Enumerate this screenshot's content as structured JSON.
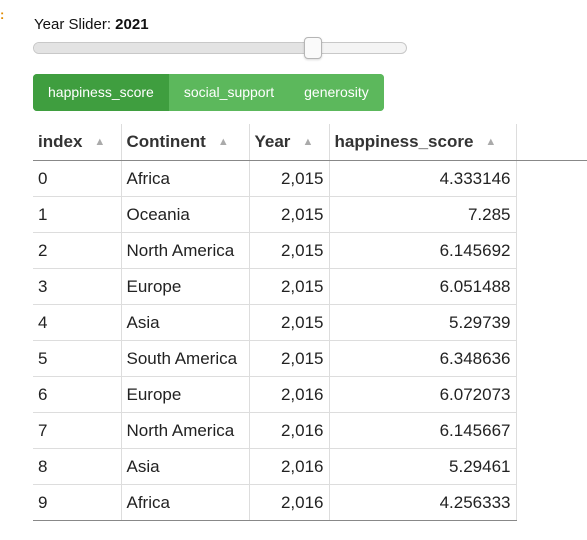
{
  "slider": {
    "label": "Year Slider:",
    "value": "2021",
    "min": 2015,
    "max": 2023,
    "fraction": 0.75
  },
  "tabs": [
    {
      "label": "happiness_score",
      "active": true
    },
    {
      "label": "social_support",
      "active": false
    },
    {
      "label": "generosity",
      "active": false
    }
  ],
  "table": {
    "columns": [
      "index",
      "Continent",
      "Year",
      "happiness_score"
    ],
    "sort_icon": "sort-up-icon",
    "rows": [
      {
        "index": "0",
        "continent": "Africa",
        "year": "2,015",
        "score": "4.333146"
      },
      {
        "index": "1",
        "continent": "Oceania",
        "year": "2,015",
        "score": "7.285"
      },
      {
        "index": "2",
        "continent": "North America",
        "year": "2,015",
        "score": "6.145692"
      },
      {
        "index": "3",
        "continent": "Europe",
        "year": "2,015",
        "score": "6.051488"
      },
      {
        "index": "4",
        "continent": "Asia",
        "year": "2,015",
        "score": "5.29739"
      },
      {
        "index": "5",
        "continent": "South America",
        "year": "2,015",
        "score": "6.348636"
      },
      {
        "index": "6",
        "continent": "Europe",
        "year": "2,016",
        "score": "6.072073"
      },
      {
        "index": "7",
        "continent": "North America",
        "year": "2,016",
        "score": "6.145667"
      },
      {
        "index": "8",
        "continent": "Asia",
        "year": "2,016",
        "score": "5.29461"
      },
      {
        "index": "9",
        "continent": "Africa",
        "year": "2,016",
        "score": "4.256333"
      }
    ]
  },
  "colors": {
    "tab_bg": "#5cb85c",
    "tab_active_bg": "#3f9e3f"
  }
}
